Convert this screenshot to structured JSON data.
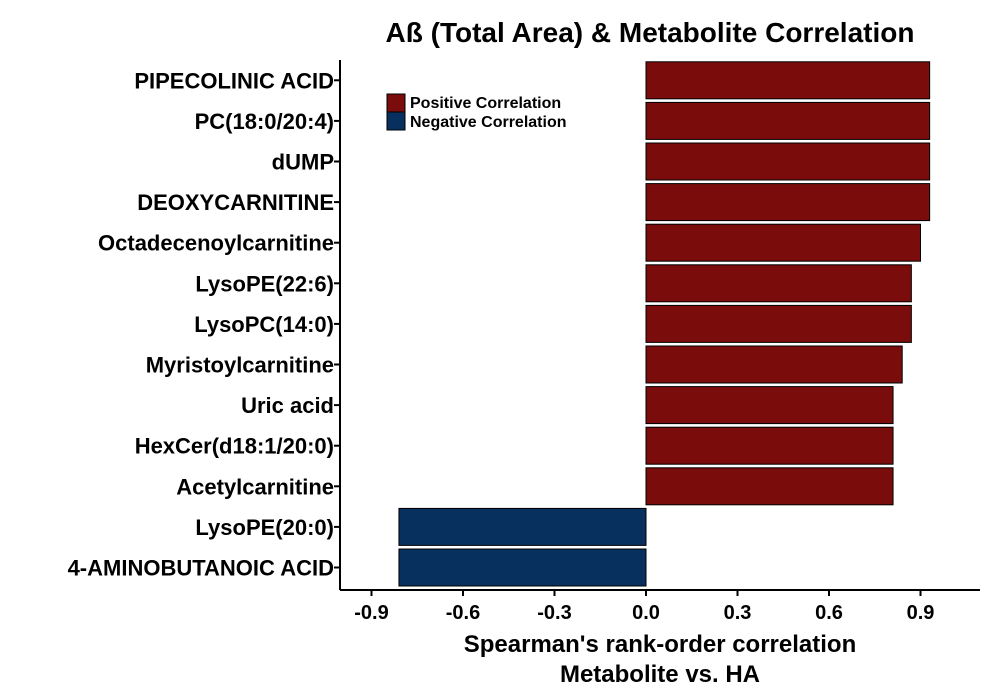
{
  "chart_data": {
    "type": "bar",
    "orientation": "horizontal",
    "title": "Aß (Total Area) & Metabolite Correlation",
    "xlabel": [
      "Spearman's rank-order correlation",
      "Metabolite vs. HA"
    ],
    "ylabel": "",
    "xlim": [
      -1.0,
      1.08
    ],
    "xticks": [
      -0.9,
      -0.6,
      -0.3,
      0.0,
      0.3,
      0.6,
      0.9
    ],
    "xtick_labels": [
      "-0.9",
      "-0.6",
      "-0.3",
      "0.0",
      "0.3",
      "0.6",
      "0.9"
    ],
    "grid": false,
    "legend_position": "top-left",
    "categories": [
      "PIPECOLINIC ACID",
      "PC(18:0/20:4)",
      "dUMP",
      "DEOXYCARNITINE",
      "Octadecenoylcarnitine",
      "LysoPE(22:6)",
      "LysoPC(14:0)",
      "Myristoylcarnitine",
      "Uric acid",
      "HexCer(d18:1/20:0)",
      "Acetylcarnitine",
      "LysoPE(20:0)",
      "4-AMINOBUTANOIC ACID"
    ],
    "values": [
      0.93,
      0.93,
      0.93,
      0.93,
      0.9,
      0.87,
      0.87,
      0.84,
      0.81,
      0.81,
      0.81,
      -0.81,
      -0.81
    ],
    "legend": [
      {
        "label": "Positive Correlation",
        "color": "#7b0c0c"
      },
      {
        "label": "Negative Correlation",
        "color": "#07305f"
      }
    ]
  }
}
